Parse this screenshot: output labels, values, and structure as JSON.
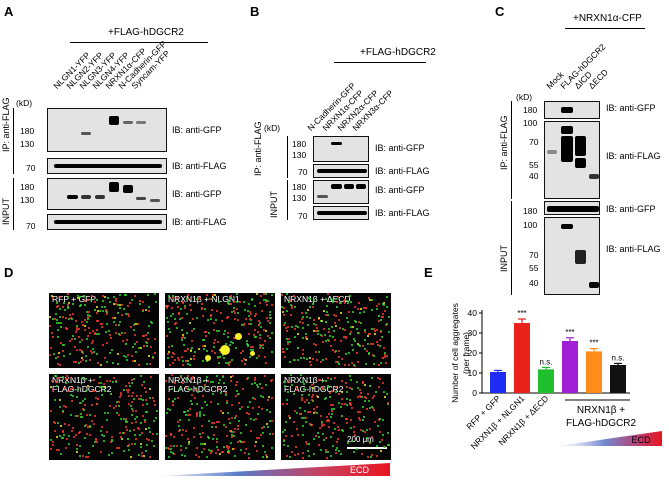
{
  "panels": {
    "a": "A",
    "b": "B",
    "c": "C",
    "d": "D",
    "e": "E"
  },
  "panelA": {
    "header": "+FLAG-hDGCR2",
    "lanes": [
      "NLGN1-YFP",
      "NLGN2-YFP",
      "NLGN3-YFP",
      "NLGN4-YFP",
      "NRXN1α-CFP",
      "N-Cadherin-GFP",
      "Syncam-YFP"
    ],
    "kd": "(kD)",
    "mw_ip_gfp": [
      "180",
      "130"
    ],
    "mw_ip_flag": [
      "70"
    ],
    "mw_in_gfp": [
      "180",
      "130"
    ],
    "mw_in_flag": [
      "70"
    ],
    "ib": [
      "IB: anti-GFP",
      "IB: anti-FLAG",
      "IB: anti-GFP",
      "IB: anti-FLAG"
    ],
    "ip_label": "IP: anti-FLAG",
    "input_label": "INPUT"
  },
  "panelB": {
    "header": "+FLAG-hDGCR2",
    "lanes": [
      "N-Cadherin-GFP",
      "NRXN1α-CFP",
      "NRXN2α-CFP",
      "NRXN3α-CFP"
    ],
    "kd": "(kD)",
    "mw_ip_gfp": [
      "180",
      "130"
    ],
    "mw_ip_flag": [
      "70"
    ],
    "mw_in_gfp": [
      "180",
      "130"
    ],
    "mw_in_flag": [
      "70"
    ],
    "ib": [
      "IB: anti-GFP",
      "IB: anti-FLAG",
      "IB: anti-GFP",
      "IB: anti-FLAG"
    ],
    "ip_label": "IP: anti-FLAG",
    "input_label": "INPUT"
  },
  "panelC": {
    "header": "+NRXN1α-CFP",
    "lanes": [
      "Mock",
      "FLAG-hDGCR2",
      "ΔICD",
      "ΔECD"
    ],
    "kd": "(kD)",
    "mw_ip_gfp": [
      "180"
    ],
    "mw_ip_flag": [
      "100",
      "70",
      "55",
      "40"
    ],
    "mw_in_gfp": [
      "180"
    ],
    "mw_in_flag": [
      "100",
      "70",
      "55",
      "40"
    ],
    "ib": [
      "IB: anti-GFP",
      "IB: anti-FLAG",
      "IB: anti-GFP",
      "IB: anti-FLAG"
    ],
    "ip_label": "IP: anti-FLAG",
    "input_label": "INPUT"
  },
  "panelD": {
    "images": [
      {
        "label_lines": [
          "RFP + GFP"
        ]
      },
      {
        "label_lines": [
          "NRXN1β + NLGN1"
        ]
      },
      {
        "label_lines": [
          "NRXN1β + ΔECD"
        ]
      },
      {
        "label_lines": [
          "NRXN1β +",
          "FLAG-hDGCR2"
        ]
      },
      {
        "label_lines": [
          "NRXN1β +",
          "FLAG-hDGCR2"
        ]
      },
      {
        "label_lines": [
          "NRXN1β +",
          "FLAG-hDGCR2"
        ]
      }
    ],
    "scale_bar": "200 μm",
    "ecd_label": "ECD",
    "colors": {
      "red": "#ff3b30",
      "green": "#2fdc2f",
      "yellow": "#f6f22a"
    }
  },
  "chart_data": {
    "type": "bar",
    "categories": [
      "RFP + GFP",
      "NRXN1β + NLGN1",
      "NRXN1β + ΔECD",
      "NRXN1β + FLAG-hDGCR2 (1)",
      "NRXN1β + FLAG-hDGCR2 (2)",
      "NRXN1β + FLAG-hDGCR2 (3)"
    ],
    "tick_labels": [
      "RFP + GFP",
      "NRXN1β + NLGN1",
      "NRXN1β + ΔECD",
      "",
      "",
      ""
    ],
    "values": [
      10.5,
      35,
      11.8,
      26,
      20.8,
      14
    ],
    "errors": [
      0.8,
      2.0,
      1.0,
      1.6,
      1.4,
      0.8
    ],
    "colors": [
      "#1f2cf5",
      "#e8221b",
      "#1fbf2e",
      "#a020d8",
      "#ff8c1a",
      "#111111"
    ],
    "significance": [
      "",
      "***",
      "n.s.",
      "***",
      "***",
      "n.s."
    ],
    "ylabel_lines": [
      "Number of cell aggregates",
      "(per frame)"
    ],
    "yticks": [
      0,
      10,
      20,
      30,
      40
    ],
    "ylim": [
      0,
      40
    ],
    "group_label_lines": [
      "NRXN1β +",
      "FLAG-hDGCR2"
    ],
    "ecd_label": "ECD"
  }
}
